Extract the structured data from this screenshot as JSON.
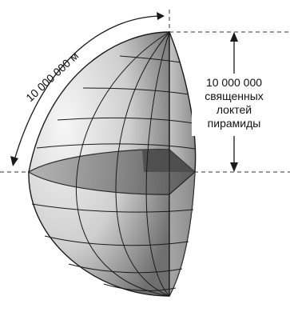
{
  "labels": {
    "arc_length": "10 000 000 м",
    "right_lines": [
      "10 000 000",
      "священных",
      "локтей",
      "пирамиды"
    ]
  },
  "colors": {
    "line": "#1a1a1a",
    "dash": "#333333",
    "globe_light": "#f4f4f4",
    "globe_dark": "#8a8a8a",
    "cut_face": "#a8a8a8",
    "equator_face": "#6e6e6e"
  }
}
